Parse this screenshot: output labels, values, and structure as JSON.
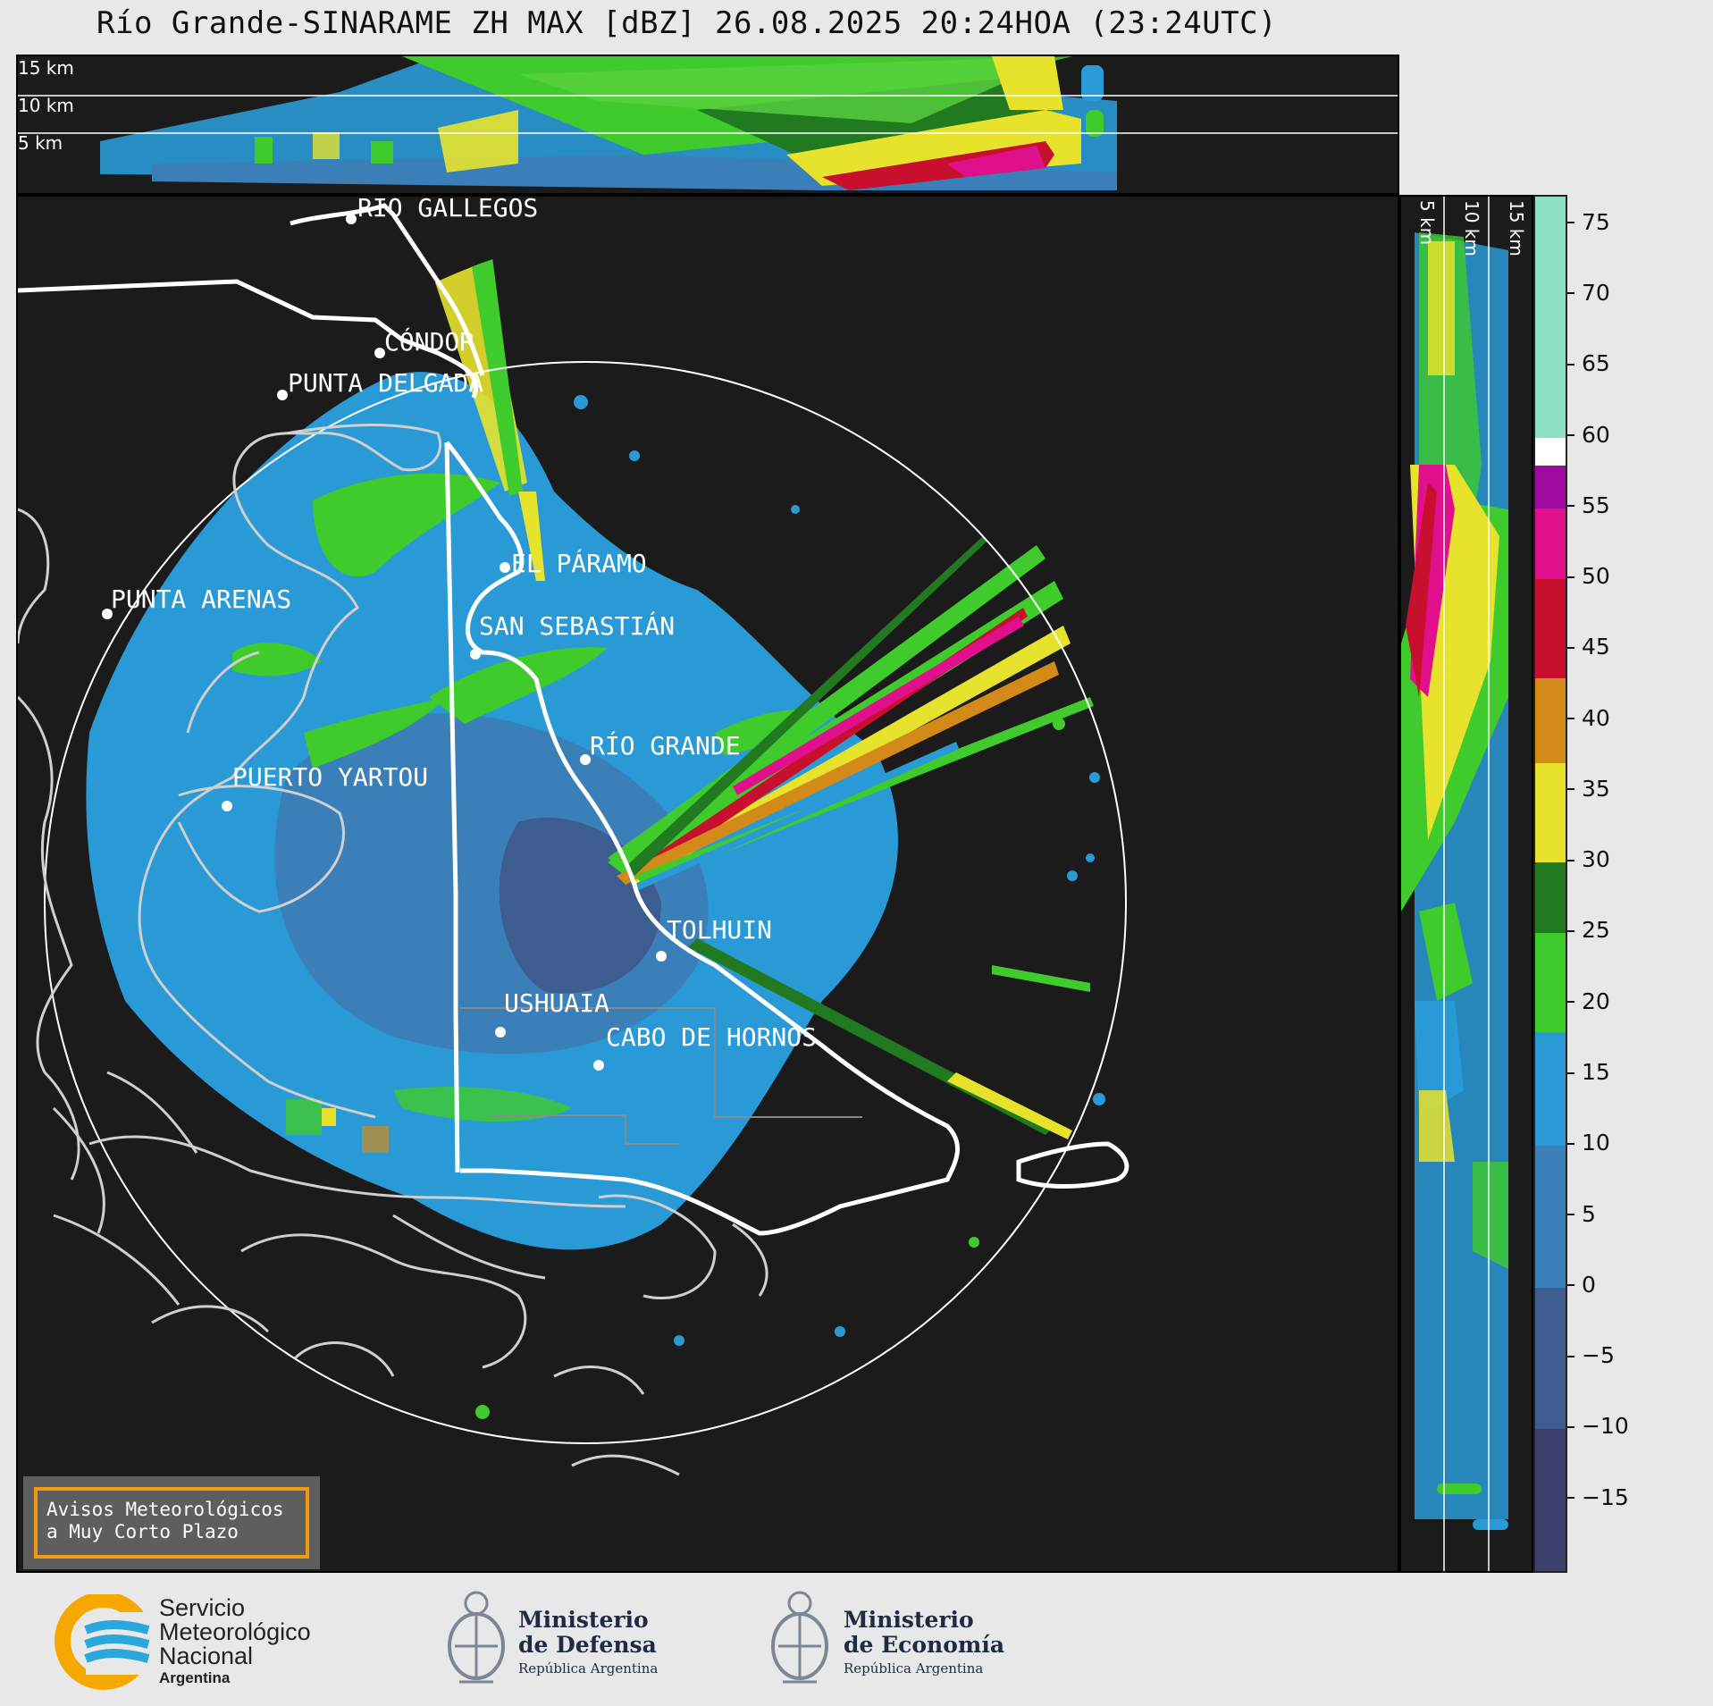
{
  "header": {
    "title": "Río Grande-SINARAME ZH MAX [dBZ] 26.08.2025 20:24HOA (23:24UTC)"
  },
  "top_panel": {
    "height_labels": [
      "15 km",
      "10 km",
      "5 km"
    ]
  },
  "side_panel": {
    "height_labels": [
      "5 km",
      "10 km",
      "15 km"
    ]
  },
  "map": {
    "cities": [
      {
        "name": "RÍO GALLEGOS"
      },
      {
        "name": "CÓNDOR"
      },
      {
        "name": "PUNTA DELGADA"
      },
      {
        "name": "EL PÁRAMO"
      },
      {
        "name": "PUNTA ARENAS"
      },
      {
        "name": "SAN SEBASTIÁN"
      },
      {
        "name": "RÍO GRANDE"
      },
      {
        "name": "PUERTO YARTOU"
      },
      {
        "name": "TOLHUIN"
      },
      {
        "name": "USHUAIA"
      },
      {
        "name": "CABO DE HORNOS"
      }
    ]
  },
  "colorbar": {
    "unit": "dBZ",
    "ticks": [
      "75",
      "70",
      "65",
      "60",
      "55",
      "50",
      "45",
      "40",
      "35",
      "30",
      "25",
      "20",
      "15",
      "10",
      "5",
      "0",
      "−5",
      "−10",
      "−15"
    ],
    "range": [
      -20,
      77
    ],
    "colors": [
      {
        "from": -20,
        "to": -10,
        "hex": "#3c3f6b"
      },
      {
        "from": -10,
        "to": 0,
        "hex": "#3d5c8f"
      },
      {
        "from": 0,
        "to": 10,
        "hex": "#3b7fb8"
      },
      {
        "from": 10,
        "to": 18,
        "hex": "#2a9ad6"
      },
      {
        "from": 18,
        "to": 25,
        "hex": "#3fcb2c"
      },
      {
        "from": 25,
        "to": 30,
        "hex": "#217a1f"
      },
      {
        "from": 30,
        "to": 37,
        "hex": "#e7e32c"
      },
      {
        "from": 37,
        "to": 43,
        "hex": "#d38a19"
      },
      {
        "from": 43,
        "to": 50,
        "hex": "#c8102e"
      },
      {
        "from": 50,
        "to": 55,
        "hex": "#e0108c"
      },
      {
        "from": 55,
        "to": 58,
        "hex": "#9d0a9d"
      },
      {
        "from": 58,
        "to": 60,
        "hex": "#ffffff"
      },
      {
        "from": 60,
        "to": 77,
        "hex": "#8ee0c3"
      }
    ]
  },
  "warning_box": {
    "line1": "Avisos Meteorológicos",
    "line2": "a Muy Corto Plazo"
  },
  "footer": {
    "smn": {
      "line1": "Servicio",
      "line2": "Meteorológico",
      "line3": "Nacional",
      "line4": "Argentina"
    },
    "defensa": {
      "line1": "Ministerio",
      "line2": "de Defensa",
      "line3": "República Argentina"
    },
    "economia": {
      "line1": "Ministerio",
      "line2": "de Economía",
      "line3": "República Argentina"
    }
  },
  "colors": {
    "panel_bg": "#1b1b1b",
    "coast": "#ffffff",
    "coast_other": "#cccccc",
    "warning_border": "#f39c12"
  }
}
